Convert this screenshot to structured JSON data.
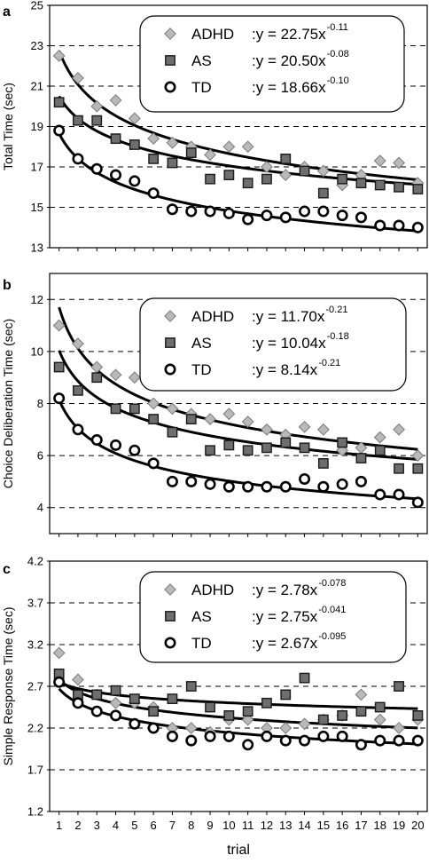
{
  "chart_data": [
    {
      "panel": "a",
      "type": "scatter",
      "ylabel": "Total Time (sec)",
      "ylim": [
        13,
        25
      ],
      "yticks": [
        "13",
        "15",
        "17",
        "19",
        "21",
        "23",
        "25"
      ],
      "grid": "dashed horizontal",
      "x": [
        1,
        2,
        3,
        4,
        5,
        6,
        7,
        8,
        9,
        10,
        11,
        12,
        13,
        14,
        15,
        16,
        17,
        18,
        19,
        20
      ],
      "series": [
        {
          "name": "ADHD",
          "marker": "diamond",
          "fit_text": ":y = 22.75x",
          "fit_exp": "-0.11",
          "a": 22.75,
          "b": -0.11,
          "values": [
            22.5,
            21.4,
            20.0,
            20.3,
            19.4,
            18.4,
            18.2,
            18.0,
            17.6,
            18.0,
            18.0,
            17.0,
            16.6,
            17.0,
            16.8,
            16.1,
            16.6,
            17.3,
            17.2,
            16.2
          ]
        },
        {
          "name": "AS",
          "marker": "square",
          "fit_text": ":y = 20.50x",
          "fit_exp": "-0.08",
          "a": 20.5,
          "b": -0.08,
          "values": [
            20.2,
            19.3,
            19.3,
            18.4,
            18.1,
            17.4,
            17.2,
            17.7,
            16.4,
            16.6,
            16.2,
            16.4,
            17.4,
            16.8,
            15.7,
            16.4,
            16.2,
            16.1,
            16.0,
            15.9
          ]
        },
        {
          "name": "TD",
          "marker": "circle",
          "fit_text": ":y = 18.66x",
          "fit_exp": "-0.10",
          "a": 18.66,
          "b": -0.1,
          "values": [
            18.8,
            17.4,
            16.9,
            16.6,
            16.3,
            15.7,
            14.9,
            14.8,
            14.8,
            14.7,
            14.4,
            14.6,
            14.5,
            14.8,
            14.8,
            14.6,
            14.5,
            14.1,
            14.1,
            14.0
          ]
        }
      ]
    },
    {
      "panel": "b",
      "type": "scatter",
      "ylabel": "Choice Deliberation Time (sec)",
      "ylim": [
        3,
        13
      ],
      "yticks": [
        "4",
        "6",
        "8",
        "10",
        "12"
      ],
      "ytick_values": [
        4,
        6,
        8,
        10,
        12
      ],
      "grid": "dashed horizontal",
      "x": [
        1,
        2,
        3,
        4,
        5,
        6,
        7,
        8,
        9,
        10,
        11,
        12,
        13,
        14,
        15,
        16,
        17,
        18,
        19,
        20
      ],
      "series": [
        {
          "name": "ADHD",
          "marker": "diamond",
          "fit_text": ":y = 11.70x",
          "fit_exp": "-0.21",
          "a": 11.7,
          "b": -0.21,
          "values": [
            11.0,
            10.3,
            9.4,
            9.1,
            9.0,
            8.0,
            7.8,
            7.6,
            7.4,
            7.6,
            7.3,
            7.0,
            6.8,
            7.1,
            7.0,
            6.2,
            6.3,
            6.7,
            7.0,
            6.0
          ]
        },
        {
          "name": "AS",
          "marker": "square",
          "fit_text": ":y = 10.04x",
          "fit_exp": "-0.18",
          "a": 10.04,
          "b": -0.18,
          "values": [
            9.4,
            8.5,
            9.0,
            7.8,
            7.8,
            7.4,
            6.9,
            7.4,
            6.2,
            6.4,
            6.2,
            6.3,
            6.5,
            6.3,
            5.7,
            6.5,
            5.9,
            6.2,
            5.5,
            5.5
          ]
        },
        {
          "name": "TD",
          "marker": "circle",
          "fit_text": ":y =   8.14x",
          "fit_exp": "-0.21",
          "a": 8.14,
          "b": -0.21,
          "values": [
            8.2,
            7.0,
            6.6,
            6.4,
            6.2,
            5.7,
            5.0,
            5.0,
            4.9,
            4.8,
            4.8,
            4.8,
            4.8,
            5.1,
            4.8,
            4.9,
            5.0,
            4.5,
            4.5,
            4.2
          ]
        }
      ]
    },
    {
      "panel": "c",
      "type": "scatter",
      "ylabel": "Simple Response Time (sec)",
      "xlabel": "trial",
      "ylim": [
        1.2,
        4.2
      ],
      "yticks": [
        "1.2",
        "1.7",
        "2.2",
        "2.7",
        "3.2",
        "3.7",
        "4.2"
      ],
      "grid": "dashed horizontal",
      "x": [
        1,
        2,
        3,
        4,
        5,
        6,
        7,
        8,
        9,
        10,
        11,
        12,
        13,
        14,
        15,
        16,
        17,
        18,
        19,
        20
      ],
      "xticks": [
        "1",
        "2",
        "3",
        "4",
        "5",
        "6",
        "7",
        "8",
        "9",
        "10",
        "11",
        "12",
        "13",
        "14",
        "15",
        "16",
        "17",
        "18",
        "19",
        "20"
      ],
      "series": [
        {
          "name": "ADHD",
          "marker": "diamond",
          "fit_text": ":y = 2.78x",
          "fit_exp": "-0.078",
          "a": 2.78,
          "b": -0.078,
          "values": [
            3.1,
            2.78,
            2.6,
            2.5,
            2.5,
            2.45,
            2.2,
            2.2,
            2.15,
            2.3,
            2.3,
            2.2,
            2.2,
            2.25,
            2.3,
            2.35,
            2.6,
            2.3,
            2.2,
            2.3
          ]
        },
        {
          "name": "AS",
          "marker": "square",
          "fit_text": ":y = 2.75x",
          "fit_exp": "-0.041",
          "a": 2.75,
          "b": -0.041,
          "values": [
            2.85,
            2.6,
            2.6,
            2.65,
            2.55,
            2.4,
            2.55,
            2.7,
            2.45,
            2.35,
            2.4,
            2.5,
            2.6,
            2.8,
            2.3,
            2.35,
            2.4,
            2.45,
            2.7,
            2.35
          ]
        },
        {
          "name": "TD",
          "marker": "circle",
          "fit_text": ":y = 2.67x",
          "fit_exp": "-0.095",
          "a": 2.67,
          "b": -0.095,
          "values": [
            2.75,
            2.5,
            2.4,
            2.35,
            2.25,
            2.2,
            2.1,
            2.05,
            2.1,
            2.1,
            2.0,
            2.1,
            2.05,
            2.05,
            2.1,
            2.1,
            2.0,
            2.05,
            2.05,
            2.05
          ]
        }
      ]
    }
  ]
}
